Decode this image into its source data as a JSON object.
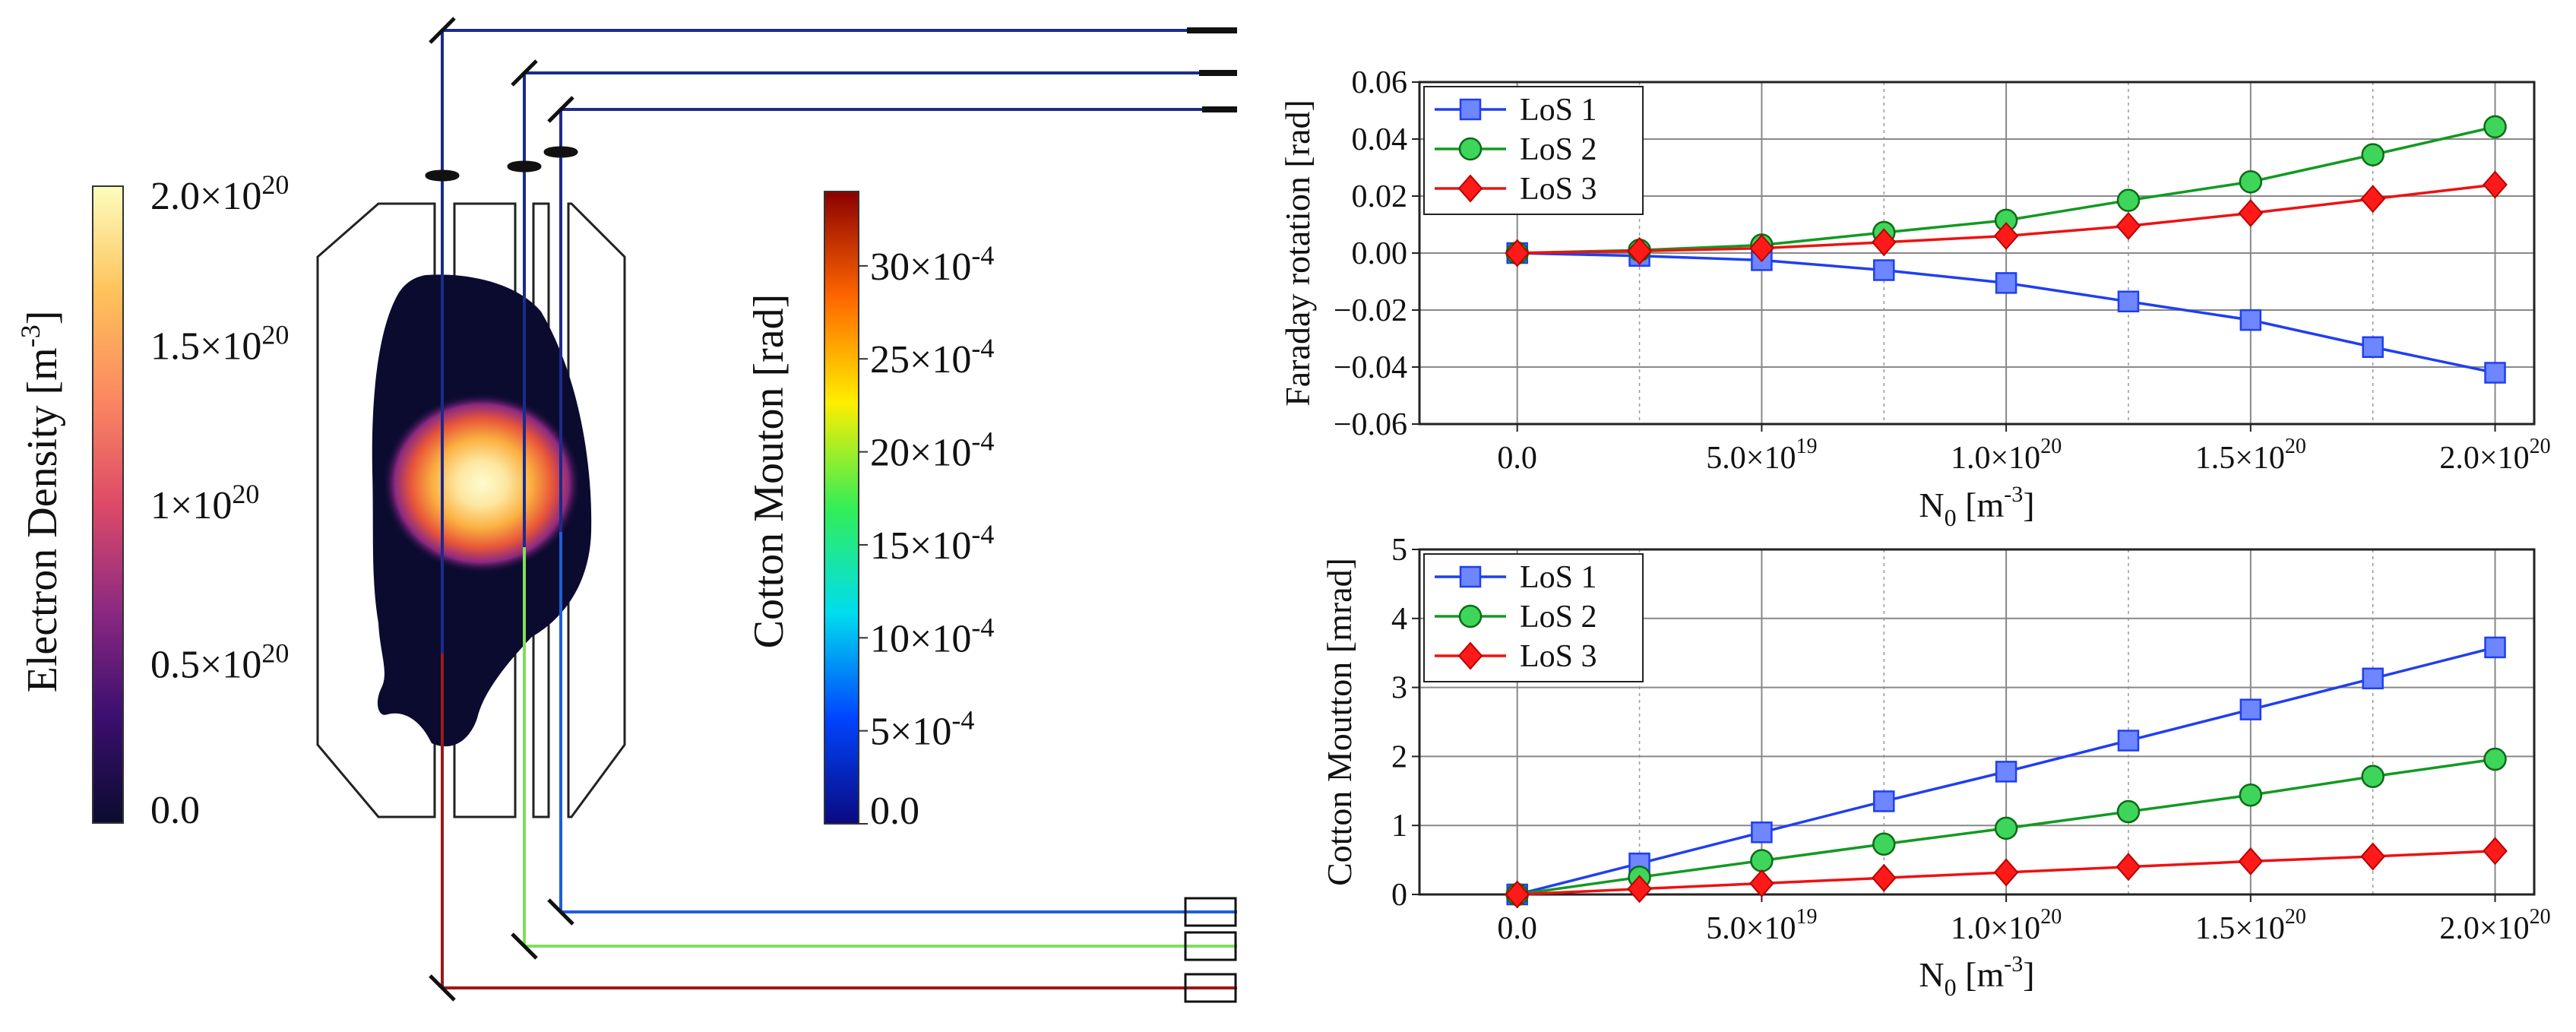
{
  "diagram": {
    "density_colorbar": {
      "label": "Electron Density [m",
      "label_exp": "-3",
      "label_close": "]",
      "ticks": [
        {
          "base": "2.0×10",
          "exp": "20"
        },
        {
          "base": "1.5×10",
          "exp": "20"
        },
        {
          "base": "1×10",
          "exp": "20"
        },
        {
          "base": "0.5×10",
          "exp": "20"
        },
        {
          "base": "0.0",
          "exp": ""
        }
      ],
      "tick_values": [
        2e+20,
        1.5e+20,
        1e+20,
        5e+19,
        0
      ],
      "range": [
        0,
        2e+20
      ],
      "colors": [
        "#0b0b30",
        "#3b0f6f",
        "#8c2981",
        "#dd4a68",
        "#fb8861",
        "#fec25a",
        "#fcfdbf"
      ]
    },
    "cm_colorbar": {
      "label": "Cotton Mouton [rad]",
      "ticks": [
        {
          "base": "30×10",
          "exp": "-4"
        },
        {
          "base": "25×10",
          "exp": "-4"
        },
        {
          "base": "20×10",
          "exp": "-4"
        },
        {
          "base": "15×10",
          "exp": "-4"
        },
        {
          "base": "10×10",
          "exp": "-4"
        },
        {
          "base": "5×10",
          "exp": "-4"
        },
        {
          "base": "0.0",
          "exp": ""
        }
      ],
      "tick_values": [
        0.003,
        0.0025,
        0.002,
        0.0015,
        0.001,
        0.0005,
        0
      ],
      "range": [
        0,
        0.0034
      ],
      "colors": [
        "#0a0a80",
        "#0044ff",
        "#00ddee",
        "#33ee55",
        "#ffee00",
        "#ff6600",
        "#8b0000"
      ]
    },
    "beam_colors": {
      "outer_top": "#1c2b8a",
      "los1": "#1f5fd6",
      "los2": "#7ee05a",
      "los3": "#9a1a1a"
    }
  },
  "chart_data": [
    {
      "type": "line",
      "title": "",
      "xlabel": "N",
      "xlabel_sub": "0",
      "xlabel_unit": " [m",
      "xlabel_exp": "-3",
      "xlabel_close": "]",
      "ylabel": "Faraday rotation [rad]",
      "x": [
        0,
        2.5e+19,
        5e+19,
        7.5e+19,
        1e+20,
        1.25e+20,
        1.5e+20,
        1.75e+20,
        2e+20
      ],
      "xlim": [
        -2e+19,
        2.08e+20
      ],
      "ylim": [
        -0.06,
        0.06
      ],
      "x_ticks": [
        {
          "v": 0,
          "base": "0.0",
          "exp": ""
        },
        {
          "v": 5e+19,
          "base": "5.0×10",
          "exp": "19"
        },
        {
          "v": 1e+20,
          "base": "1.0×10",
          "exp": "20"
        },
        {
          "v": 1.5e+20,
          "base": "1.5×10",
          "exp": "20"
        },
        {
          "v": 2e+20,
          "base": "2.0×10",
          "exp": "20"
        }
      ],
      "y_ticks": [
        {
          "v": 0.06,
          "label": "0.06"
        },
        {
          "v": 0.04,
          "label": "0.04"
        },
        {
          "v": 0.02,
          "label": "0.02"
        },
        {
          "v": 0.0,
          "label": "0.00"
        },
        {
          "v": -0.02,
          "label": "−0.02"
        },
        {
          "v": -0.04,
          "label": "−0.04"
        },
        {
          "v": -0.06,
          "label": "−0.06"
        }
      ],
      "legend_position": "top-left",
      "series": [
        {
          "name": "LoS 1",
          "color": "#1f3ff0",
          "fill": "#6e86ff",
          "marker": "square",
          "values": [
            0.0,
            -0.001,
            -0.0025,
            -0.006,
            -0.0105,
            -0.017,
            -0.0235,
            -0.033,
            -0.042
          ]
        },
        {
          "name": "LoS 2",
          "color": "#129a22",
          "fill": "#3ed65a",
          "marker": "circle",
          "values": [
            0.0,
            0.001,
            0.0028,
            0.0072,
            0.0115,
            0.0185,
            0.025,
            0.0345,
            0.0443
          ]
        },
        {
          "name": "LoS 3",
          "color": "#ee1111",
          "fill": "#ff1a1a",
          "marker": "diamond",
          "values": [
            0.0,
            0.0007,
            0.0017,
            0.0038,
            0.006,
            0.0095,
            0.014,
            0.019,
            0.024
          ]
        }
      ]
    },
    {
      "type": "line",
      "title": "",
      "xlabel": "N",
      "xlabel_sub": "0",
      "xlabel_unit": " [m",
      "xlabel_exp": "-3",
      "xlabel_close": "]",
      "ylabel": "Cotton Moutton [mrad]",
      "x": [
        0,
        2.5e+19,
        5e+19,
        7.5e+19,
        1e+20,
        1.25e+20,
        1.5e+20,
        1.75e+20,
        2e+20
      ],
      "xlim": [
        -2e+19,
        2.08e+20
      ],
      "ylim": [
        0,
        5
      ],
      "x_ticks": [
        {
          "v": 0,
          "base": "0.0",
          "exp": ""
        },
        {
          "v": 5e+19,
          "base": "5.0×10",
          "exp": "19"
        },
        {
          "v": 1e+20,
          "base": "1.0×10",
          "exp": "20"
        },
        {
          "v": 1.5e+20,
          "base": "1.5×10",
          "exp": "20"
        },
        {
          "v": 2e+20,
          "base": "2.0×10",
          "exp": "20"
        }
      ],
      "y_ticks": [
        {
          "v": 5,
          "label": "5"
        },
        {
          "v": 4,
          "label": "4"
        },
        {
          "v": 3,
          "label": "3"
        },
        {
          "v": 2,
          "label": "2"
        },
        {
          "v": 1,
          "label": "1"
        },
        {
          "v": 0,
          "label": "0"
        }
      ],
      "legend_position": "top-left",
      "series": [
        {
          "name": "LoS 1",
          "color": "#1f3ff0",
          "fill": "#6e86ff",
          "marker": "square",
          "values": [
            0.0,
            0.45,
            0.9,
            1.35,
            1.78,
            2.23,
            2.68,
            3.13,
            3.58
          ]
        },
        {
          "name": "LoS 2",
          "color": "#129a22",
          "fill": "#3ed65a",
          "marker": "circle",
          "values": [
            0.0,
            0.25,
            0.49,
            0.73,
            0.96,
            1.2,
            1.44,
            1.71,
            1.96
          ]
        },
        {
          "name": "LoS 3",
          "color": "#ee1111",
          "fill": "#ff1a1a",
          "marker": "diamond",
          "values": [
            0.0,
            0.08,
            0.16,
            0.24,
            0.32,
            0.4,
            0.48,
            0.55,
            0.63
          ]
        }
      ]
    }
  ]
}
